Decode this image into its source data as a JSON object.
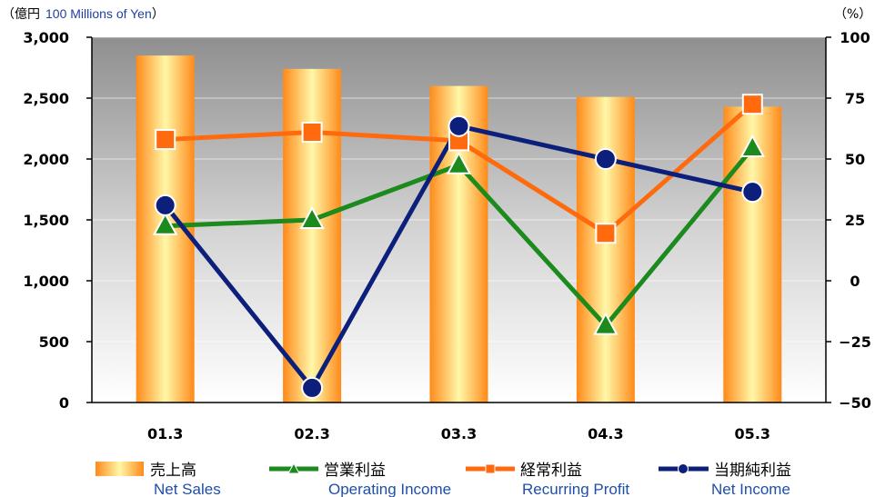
{
  "chart_data": {
    "type": "bar",
    "categories": [
      "01.3",
      "02.3",
      "03.3",
      "04.3",
      "05.3"
    ],
    "left_axis": {
      "unit_jp": "（億円",
      "unit_en": "100 Millions of Yen",
      "unit_close": "）",
      "ylim": [
        0,
        3000
      ],
      "ticks": [
        "3,000",
        "2,500",
        "2,000",
        "1,500",
        "1,000",
        "500",
        "0"
      ]
    },
    "right_axis": {
      "unit": "（%）",
      "ylim": [
        -50,
        100
      ],
      "ticks": [
        "100",
        "75",
        "50",
        "25",
        "0",
        "−25",
        "−50"
      ]
    },
    "bar_series": {
      "name_jp": "売上高",
      "name_en": "Net Sales",
      "axis": "left",
      "values": [
        2850,
        2740,
        2600,
        2510,
        2430
      ]
    },
    "line_series": [
      {
        "name_jp": "営業利益",
        "name_en": "Operating Income",
        "axis": "right",
        "marker": "triangle",
        "color": "#1c8a1c",
        "values": [
          22.5,
          25,
          47.5,
          -18.5,
          54.5
        ]
      },
      {
        "name_jp": "経常利益",
        "name_en": "Recurring Profit",
        "axis": "right",
        "marker": "square",
        "color": "#ff6a0e",
        "values": [
          58,
          61,
          57.5,
          19.5,
          72.5
        ]
      },
      {
        "name_jp": "当期純利益",
        "name_en": "Net Income",
        "axis": "right",
        "marker": "circle",
        "color": "#0c1f7a",
        "values": [
          31,
          -44,
          63.5,
          50,
          36.5
        ]
      }
    ],
    "grid": true,
    "legend_placement": "bottom",
    "colors": {
      "bar_edge": "#ff8a1a",
      "bar_center": "#fff7a8",
      "plot_top": "#8f8f8f",
      "plot_bottom": "#ffffff"
    }
  }
}
